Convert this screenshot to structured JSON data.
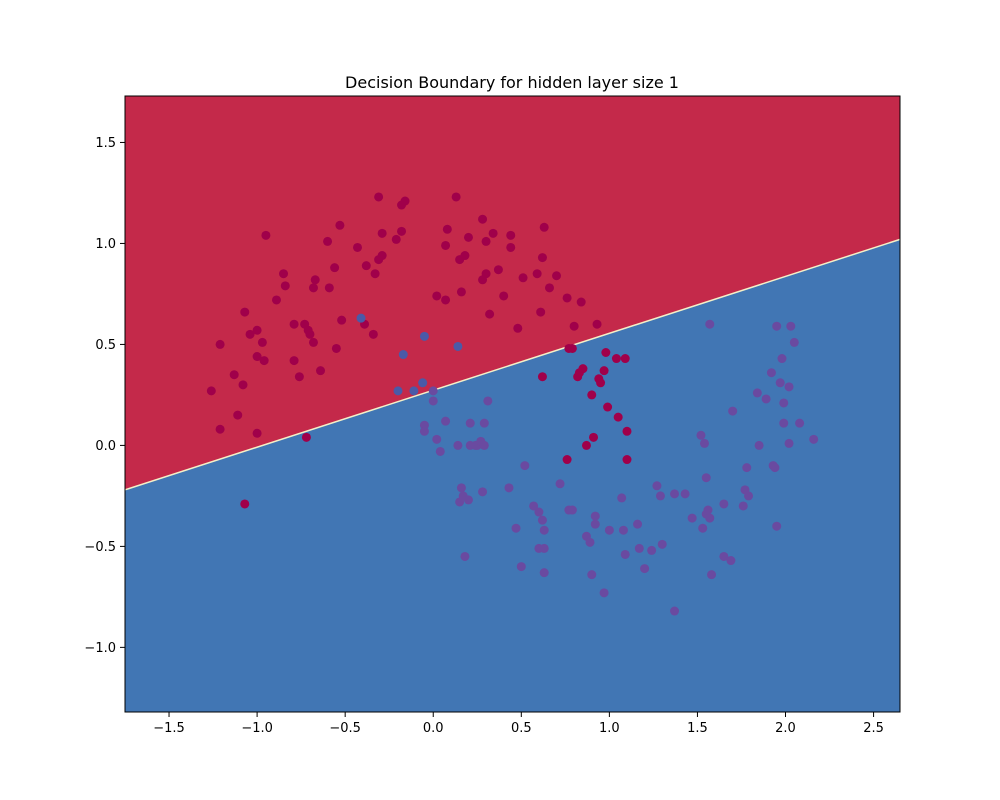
{
  "chart_data": {
    "type": "scatter",
    "title": "Decision Boundary for hidden layer size 1",
    "xlabel": "",
    "ylabel": "",
    "xlim": [
      -1.75,
      2.65
    ],
    "ylim": [
      -1.32,
      1.73
    ],
    "xticks": [
      -1.5,
      -1.0,
      -0.5,
      0.0,
      0.5,
      1.0,
      1.5,
      2.0,
      2.5
    ],
    "xtick_labels": [
      "−1.5",
      "−1.0",
      "−0.5",
      "0.0",
      "0.5",
      "1.0",
      "1.5",
      "2.0",
      "2.5"
    ],
    "yticks": [
      -1.0,
      -0.5,
      0.0,
      0.5,
      1.0,
      1.5
    ],
    "ytick_labels": [
      "−1.0",
      "−0.5",
      "0.0",
      "0.5",
      "1.0",
      "1.5"
    ],
    "grid": false,
    "decision_boundary": {
      "points": [
        [
          -1.75,
          -0.22
        ],
        [
          2.65,
          1.02
        ]
      ],
      "region_above_color": "#c4294a",
      "region_below_color": "#4176b4",
      "boundary_color": "#f4f0c8"
    },
    "point_colors": {
      "class_0": "#a0004a",
      "class_1": "#6a4aa0",
      "class_1_misclassified": "#4a5aa8"
    },
    "series": [
      {
        "class": 0,
        "points": [
          [
            -1.26,
            0.27
          ],
          [
            -1.21,
            0.5
          ],
          [
            -1.21,
            0.08
          ],
          [
            -1.13,
            0.35
          ],
          [
            -1.11,
            0.15
          ],
          [
            -1.08,
            0.3
          ],
          [
            -1.07,
            0.66
          ],
          [
            -1.04,
            0.55
          ],
          [
            -1.0,
            0.57
          ],
          [
            -1.0,
            0.44
          ],
          [
            -1.0,
            0.06
          ],
          [
            -0.97,
            0.51
          ],
          [
            -0.96,
            0.42
          ],
          [
            -0.95,
            1.04
          ],
          [
            -0.89,
            0.72
          ],
          [
            -0.85,
            0.85
          ],
          [
            -0.84,
            0.79
          ],
          [
            -0.79,
            0.42
          ],
          [
            -0.79,
            0.6
          ],
          [
            -0.76,
            0.34
          ],
          [
            -0.73,
            0.6
          ],
          [
            -0.71,
            0.57
          ],
          [
            -0.7,
            0.55
          ],
          [
            -0.68,
            0.51
          ],
          [
            -0.68,
            0.78
          ],
          [
            -0.67,
            0.82
          ],
          [
            -0.64,
            0.37
          ],
          [
            -0.6,
            1.01
          ],
          [
            -0.59,
            0.78
          ],
          [
            -0.56,
            0.88
          ],
          [
            -0.55,
            0.48
          ],
          [
            -0.53,
            1.09
          ],
          [
            -0.52,
            0.62
          ],
          [
            -0.43,
            0.98
          ],
          [
            -0.39,
            0.6
          ],
          [
            -0.38,
            0.89
          ],
          [
            -0.34,
            0.55
          ],
          [
            -0.33,
            0.85
          ],
          [
            -0.31,
            1.23
          ],
          [
            -0.31,
            0.92
          ],
          [
            -0.29,
            0.94
          ],
          [
            -0.29,
            1.05
          ],
          [
            -0.21,
            1.02
          ],
          [
            -0.18,
            1.19
          ],
          [
            -0.18,
            1.06
          ],
          [
            -0.16,
            1.21
          ],
          [
            0.02,
            0.74
          ],
          [
            0.07,
            0.72
          ],
          [
            0.07,
            0.99
          ],
          [
            0.08,
            1.07
          ],
          [
            0.13,
            1.23
          ],
          [
            0.15,
            0.92
          ],
          [
            0.16,
            0.76
          ],
          [
            0.18,
            0.94
          ],
          [
            0.2,
            1.03
          ],
          [
            0.28,
            0.82
          ],
          [
            0.28,
            1.12
          ],
          [
            0.3,
            0.85
          ],
          [
            0.3,
            1.01
          ],
          [
            0.32,
            0.65
          ],
          [
            0.34,
            1.05
          ],
          [
            0.37,
            0.87
          ],
          [
            0.4,
            0.74
          ],
          [
            0.44,
            0.98
          ],
          [
            0.44,
            1.04
          ],
          [
            0.48,
            0.58
          ],
          [
            0.51,
            0.83
          ],
          [
            0.59,
            0.85
          ],
          [
            0.61,
            0.66
          ],
          [
            0.62,
            0.93
          ],
          [
            0.63,
            1.08
          ],
          [
            0.66,
            0.78
          ],
          [
            0.7,
            0.84
          ],
          [
            0.76,
            0.73
          ],
          [
            0.79,
            0.48
          ],
          [
            0.8,
            0.59
          ],
          [
            0.84,
            0.71
          ],
          [
            0.93,
            0.6
          ],
          [
            0.77,
            0.48
          ],
          [
            0.62,
            0.34
          ],
          [
            0.82,
            0.34
          ],
          [
            0.83,
            0.36
          ],
          [
            0.85,
            0.38
          ],
          [
            0.9,
            0.25
          ],
          [
            0.94,
            0.33
          ],
          [
            0.95,
            0.31
          ],
          [
            0.97,
            0.37
          ],
          [
            0.98,
            0.46
          ],
          [
            0.99,
            0.19
          ],
          [
            1.04,
            0.43
          ],
          [
            1.05,
            0.14
          ],
          [
            1.09,
            0.43
          ],
          [
            1.1,
            0.07
          ],
          [
            0.76,
            -0.07
          ],
          [
            0.87,
            0.0
          ],
          [
            0.91,
            0.04
          ],
          [
            1.1,
            -0.07
          ],
          [
            -0.72,
            0.04
          ],
          [
            -1.07,
            -0.29
          ]
        ]
      },
      {
        "class": 1,
        "points": [
          [
            -0.41,
            0.63
          ],
          [
            -0.17,
            0.45
          ],
          [
            -0.05,
            0.54
          ],
          [
            0.14,
            0.49
          ],
          [
            -0.2,
            0.27
          ],
          [
            -0.11,
            0.27
          ],
          [
            -0.06,
            0.31
          ],
          [
            0.0,
            0.22
          ],
          [
            0.0,
            0.27
          ],
          [
            -0.05,
            0.1
          ],
          [
            -0.05,
            0.07
          ],
          [
            0.02,
            0.03
          ],
          [
            0.04,
            -0.03
          ],
          [
            0.07,
            0.12
          ],
          [
            0.14,
            0.0
          ],
          [
            0.15,
            -0.28
          ],
          [
            0.16,
            -0.21
          ],
          [
            0.17,
            -0.25
          ],
          [
            0.18,
            -0.55
          ],
          [
            0.21,
            0.0
          ],
          [
            0.21,
            0.11
          ],
          [
            0.2,
            -0.27
          ],
          [
            0.24,
            0.0
          ],
          [
            0.25,
            0.0
          ],
          [
            0.27,
            0.02
          ],
          [
            0.29,
            0.11
          ],
          [
            0.28,
            -0.23
          ],
          [
            0.29,
            0.0
          ],
          [
            0.31,
            0.22
          ],
          [
            0.43,
            -0.21
          ],
          [
            0.47,
            -0.41
          ],
          [
            0.5,
            -0.6
          ],
          [
            0.52,
            -0.1
          ],
          [
            0.57,
            -0.3
          ],
          [
            0.6,
            -0.33
          ],
          [
            0.6,
            -0.51
          ],
          [
            0.62,
            -0.37
          ],
          [
            0.63,
            -0.42
          ],
          [
            0.63,
            -0.51
          ],
          [
            0.63,
            -0.63
          ],
          [
            0.72,
            -0.19
          ],
          [
            0.77,
            -0.32
          ],
          [
            0.79,
            -0.32
          ],
          [
            0.87,
            -0.45
          ],
          [
            0.89,
            -0.48
          ],
          [
            0.9,
            -0.64
          ],
          [
            0.92,
            -0.35
          ],
          [
            0.92,
            -0.39
          ],
          [
            0.97,
            -0.73
          ],
          [
            1.0,
            -0.42
          ],
          [
            1.08,
            -0.42
          ],
          [
            1.07,
            -0.26
          ],
          [
            1.09,
            -0.54
          ],
          [
            1.16,
            -0.39
          ],
          [
            1.17,
            -0.51
          ],
          [
            1.2,
            -0.61
          ],
          [
            1.24,
            -0.52
          ],
          [
            1.27,
            -0.2
          ],
          [
            1.3,
            -0.49
          ],
          [
            1.29,
            -0.25
          ],
          [
            1.37,
            -0.24
          ],
          [
            1.37,
            -0.82
          ],
          [
            1.43,
            -0.24
          ],
          [
            1.47,
            -0.36
          ],
          [
            1.52,
            0.05
          ],
          [
            1.53,
            -0.41
          ],
          [
            1.54,
            0.01
          ],
          [
            1.55,
            -0.16
          ],
          [
            1.55,
            -0.34
          ],
          [
            1.56,
            -0.32
          ],
          [
            1.57,
            -0.36
          ],
          [
            1.58,
            -0.64
          ],
          [
            1.57,
            0.6
          ],
          [
            1.65,
            -0.29
          ],
          [
            1.65,
            -0.55
          ],
          [
            1.69,
            -0.57
          ],
          [
            1.7,
            0.17
          ],
          [
            1.76,
            -0.3
          ],
          [
            1.77,
            -0.22
          ],
          [
            1.78,
            -0.11
          ],
          [
            1.79,
            -0.25
          ],
          [
            1.84,
            0.26
          ],
          [
            1.85,
            0.0
          ],
          [
            1.89,
            0.23
          ],
          [
            1.92,
            0.36
          ],
          [
            1.93,
            -0.1
          ],
          [
            1.94,
            -0.11
          ],
          [
            1.95,
            0.59
          ],
          [
            1.95,
            -0.4
          ],
          [
            1.97,
            0.31
          ],
          [
            1.98,
            0.43
          ],
          [
            1.99,
            0.11
          ],
          [
            1.99,
            0.21
          ],
          [
            2.02,
            0.29
          ],
          [
            2.02,
            0.01
          ],
          [
            2.03,
            0.59
          ],
          [
            2.05,
            0.51
          ],
          [
            2.08,
            0.11
          ],
          [
            2.16,
            0.03
          ]
        ]
      }
    ]
  }
}
